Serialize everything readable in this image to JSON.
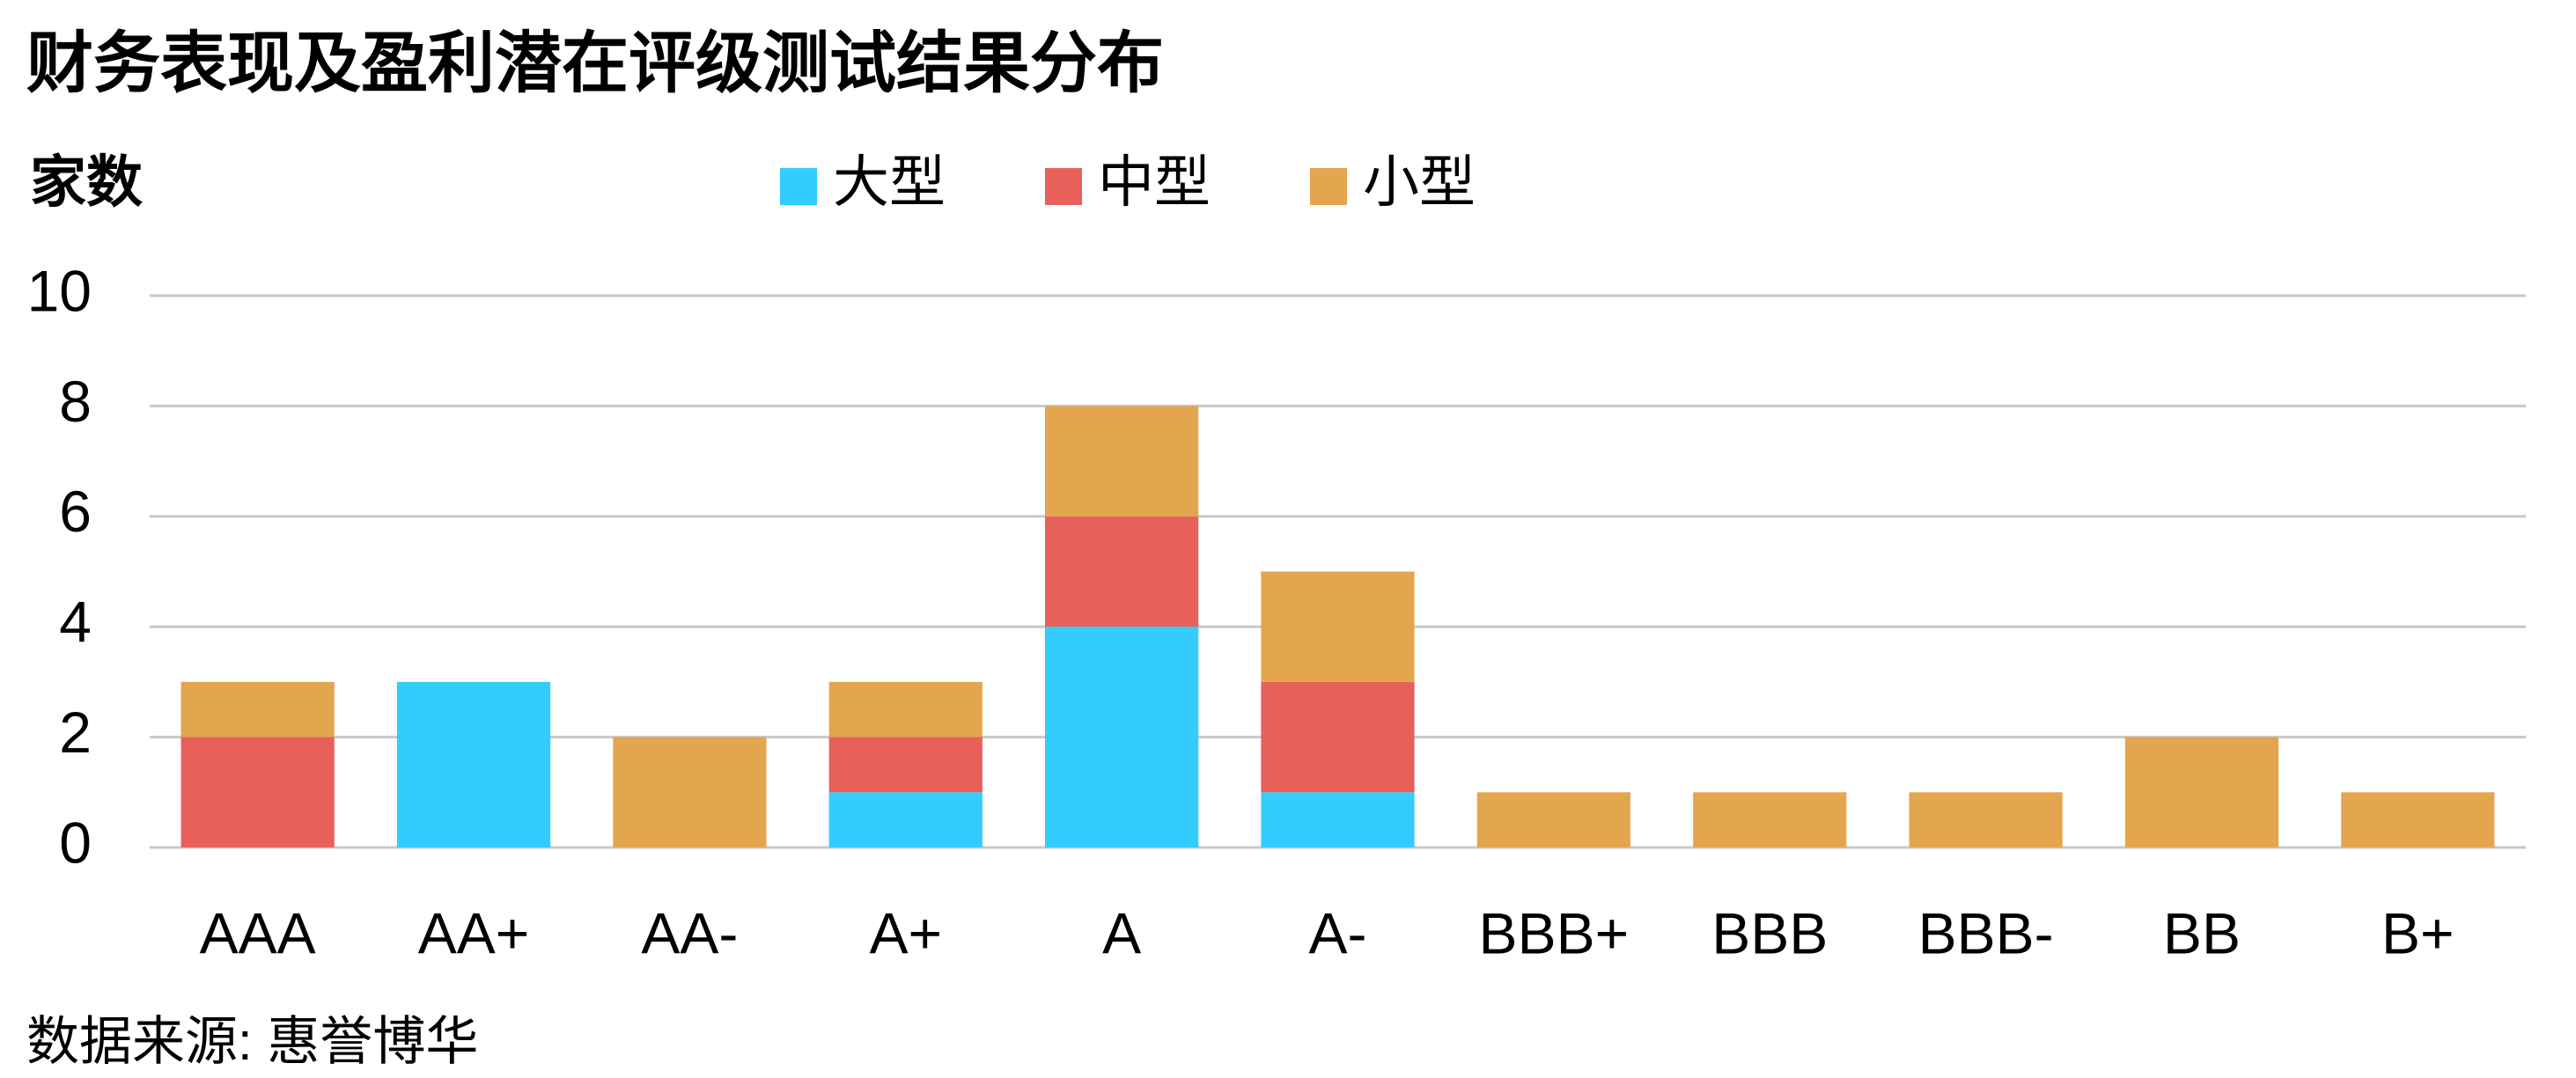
{
  "chart_data": {
    "type": "stacked_bar",
    "title": "财务表现及盈利潜在评级测试结果分布",
    "y_label": "家数",
    "source": "数据来源: 惠誉博华",
    "categories": [
      "AAA",
      "AA+",
      "AA-",
      "A+",
      "A",
      "A-",
      "BBB+",
      "BBB",
      "BBB-",
      "BB",
      "B+"
    ],
    "series": [
      {
        "name": "大型",
        "color": "#33ccff",
        "values": [
          0,
          3,
          0,
          1,
          4,
          1,
          0,
          0,
          0,
          0,
          0
        ]
      },
      {
        "name": "中型",
        "color": "#e8605a",
        "values": [
          2,
          0,
          0,
          1,
          2,
          2,
          0,
          0,
          0,
          0,
          0
        ]
      },
      {
        "name": "小型",
        "color": "#e3a54d",
        "values": [
          1,
          0,
          2,
          1,
          2,
          2,
          1,
          1,
          1,
          2,
          1
        ]
      }
    ],
    "ylim": [
      0,
      10
    ],
    "yticks": [
      0,
      2,
      4,
      6,
      8,
      10
    ],
    "grid": true
  }
}
